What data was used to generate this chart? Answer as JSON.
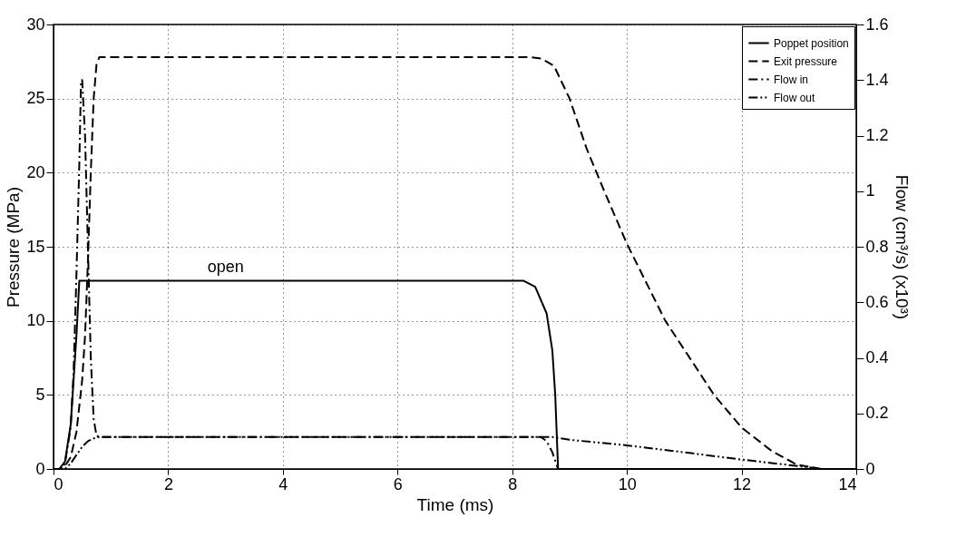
{
  "chart_data": {
    "type": "line",
    "xlabel": "Time (ms)",
    "ylabel": "Pressure (MPa)",
    "y2label": "Flow (cm³/s) (x10³)",
    "xlim": [
      0,
      14
    ],
    "xticks": [
      0,
      2,
      4,
      6,
      8,
      10,
      12,
      14
    ],
    "ylim": [
      0,
      30
    ],
    "yticks": [
      0,
      5,
      10,
      15,
      20,
      25,
      30
    ],
    "y2lim": [
      0,
      1.6
    ],
    "y2ticks": [
      0,
      0.2,
      0.4,
      0.6,
      0.8,
      1,
      1.2,
      1.4,
      1.6
    ],
    "grid": true,
    "legend": "top right",
    "annotations": [
      {
        "text": "open",
        "x": 3,
        "y": 12.7
      }
    ],
    "series": [
      {
        "name": "Poppet position",
        "color": "#000000",
        "line_style": "solid",
        "x": [
          0,
          0.1,
          0.2,
          0.3,
          0.4,
          0.45,
          8.2,
          8.4,
          8.6,
          8.7,
          8.75,
          8.8,
          14
        ],
        "values": [
          0,
          0,
          0.5,
          3,
          9,
          12.7,
          12.7,
          12.3,
          10.5,
          8,
          5,
          0,
          0
        ]
      },
      {
        "name": "Exit pressure",
        "color": "#000000",
        "line_style": "dashed",
        "x": [
          0,
          0.1,
          0.2,
          0.3,
          0.4,
          0.5,
          0.55,
          0.6,
          0.65,
          0.7,
          0.75,
          0.8,
          8.0,
          8.3,
          8.5,
          8.6,
          8.73,
          9.0,
          9.3,
          9.6,
          10,
          10.67,
          11.52,
          12,
          12.53,
          12.96,
          13.39,
          14
        ],
        "values": [
          0,
          0,
          0.2,
          0.8,
          2.5,
          6,
          9,
          14,
          20,
          25,
          27.3,
          27.8,
          27.8,
          27.8,
          27.7,
          27.5,
          27.2,
          25,
          21.6,
          18.8,
          15.2,
          10,
          5,
          2.8,
          1.2,
          0.3,
          0,
          0
        ]
      },
      {
        "name": "Flow in",
        "color": "#000000",
        "line_style": "dashdot",
        "axis": "y2",
        "x": [
          0,
          0.15,
          0.2,
          0.3,
          0.35,
          0.4,
          0.45,
          0.48,
          0.5,
          0.55,
          0.6,
          0.65,
          0.7,
          0.75,
          0.8,
          8.5,
          8.6,
          8.7,
          8.8,
          14
        ],
        "values": [
          0,
          0,
          0.02,
          0.15,
          0.35,
          0.7,
          1.1,
          1.4,
          1.4,
          1.2,
          0.8,
          0.4,
          0.18,
          0.12,
          0.115,
          0.115,
          0.1,
          0.06,
          0,
          0
        ]
      },
      {
        "name": "Flow out",
        "color": "#000000",
        "line_style": "dashdotdot",
        "axis": "y2",
        "x": [
          0,
          0.2,
          0.3,
          0.4,
          0.5,
          0.6,
          0.7,
          0.8,
          8.7,
          9,
          10,
          11,
          12,
          13,
          13.4,
          14
        ],
        "values": [
          0,
          0,
          0.02,
          0.05,
          0.08,
          0.1,
          0.11,
          0.115,
          0.115,
          0.105,
          0.085,
          0.06,
          0.034,
          0.01,
          0,
          0
        ]
      }
    ]
  }
}
